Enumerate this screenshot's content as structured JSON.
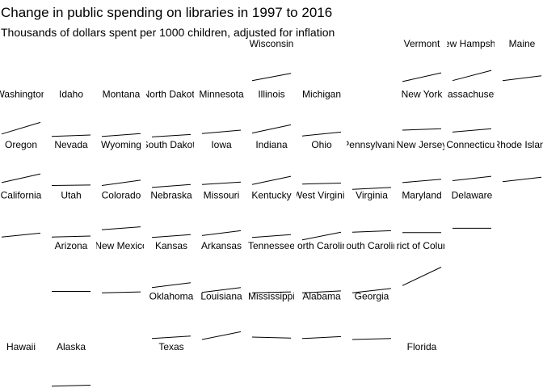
{
  "title": "Change in public spending on libraries in 1997 to 2016",
  "subtitle": "Thousands of dollars spent per 1000 children, adjusted for inflation",
  "chart_data": {
    "type": "line",
    "title": "Change in public spending on libraries in 1997 to 2016",
    "subtitle": "Thousands of dollars spent per 1000 children, adjusted for inflation",
    "x": [
      1997,
      2016
    ],
    "ylim": [
      0,
      12
    ],
    "states": [
      {
        "name": "Wisconsin",
        "row": 0,
        "col": 5,
        "values": [
          4.6,
          7.6
        ]
      },
      {
        "name": "Vermont",
        "row": 0,
        "col": 8,
        "values": [
          4.2,
          7.8
        ]
      },
      {
        "name": "New Hampshire",
        "row": 0,
        "col": 9,
        "values": [
          4.6,
          8.8
        ]
      },
      {
        "name": "Maine",
        "row": 0,
        "col": 10,
        "values": [
          4.6,
          6.6
        ]
      },
      {
        "name": "Washington",
        "row": 1,
        "col": 0,
        "values": [
          3.4,
          8.2
        ]
      },
      {
        "name": "Idaho",
        "row": 1,
        "col": 1,
        "values": [
          2.4,
          3.0
        ]
      },
      {
        "name": "Montana",
        "row": 1,
        "col": 2,
        "values": [
          2.4,
          3.6
        ]
      },
      {
        "name": "North Dakota",
        "row": 1,
        "col": 3,
        "values": [
          2.2,
          3.2
        ]
      },
      {
        "name": "Minnesota",
        "row": 1,
        "col": 4,
        "values": [
          3.6,
          5.0
        ]
      },
      {
        "name": "Illinois",
        "row": 1,
        "col": 5,
        "values": [
          3.8,
          7.2
        ]
      },
      {
        "name": "Michigan",
        "row": 1,
        "col": 6,
        "values": [
          2.6,
          4.2
        ]
      },
      {
        "name": "New York",
        "row": 1,
        "col": 8,
        "values": [
          5.0,
          5.6
        ]
      },
      {
        "name": "Massachusetts",
        "row": 1,
        "col": 9,
        "values": [
          4.2,
          5.6
        ]
      },
      {
        "name": "Oregon",
        "row": 2,
        "col": 0,
        "values": [
          4.2,
          7.8
        ]
      },
      {
        "name": "Nevada",
        "row": 2,
        "col": 1,
        "values": [
          3.0,
          3.2
        ]
      },
      {
        "name": "Wyoming",
        "row": 2,
        "col": 2,
        "values": [
          3.0,
          5.2
        ]
      },
      {
        "name": "South Dakota",
        "row": 2,
        "col": 3,
        "values": [
          2.2,
          3.4
        ]
      },
      {
        "name": "Iowa",
        "row": 2,
        "col": 4,
        "values": [
          3.4,
          4.4
        ]
      },
      {
        "name": "Indiana",
        "row": 2,
        "col": 5,
        "values": [
          3.4,
          6.8
        ]
      },
      {
        "name": "Ohio",
        "row": 2,
        "col": 6,
        "values": [
          3.6,
          4.0
        ]
      },
      {
        "name": "Pennsylvania",
        "row": 2,
        "col": 7,
        "values": [
          1.4,
          2.2
        ]
      },
      {
        "name": "New Jersey",
        "row": 2,
        "col": 8,
        "values": [
          4.2,
          5.6
        ]
      },
      {
        "name": "Connecticut",
        "row": 2,
        "col": 9,
        "values": [
          5.0,
          6.8
        ]
      },
      {
        "name": "Rhode Island",
        "row": 2,
        "col": 10,
        "values": [
          4.6,
          6.4
        ]
      },
      {
        "name": "California",
        "row": 3,
        "col": 0,
        "values": [
          2.6,
          4.2
        ]
      },
      {
        "name": "Utah",
        "row": 3,
        "col": 1,
        "values": [
          2.6,
          3.0
        ]
      },
      {
        "name": "Colorado",
        "row": 3,
        "col": 2,
        "values": [
          5.6,
          6.8
        ]
      },
      {
        "name": "Nebraska",
        "row": 3,
        "col": 3,
        "values": [
          2.4,
          3.6
        ]
      },
      {
        "name": "Missouri",
        "row": 3,
        "col": 4,
        "values": [
          3.2,
          5.2
        ]
      },
      {
        "name": "Kentucky",
        "row": 3,
        "col": 5,
        "values": [
          2.4,
          3.6
        ]
      },
      {
        "name": "West Virginia",
        "row": 3,
        "col": 6,
        "values": [
          1.4,
          4.6
        ]
      },
      {
        "name": "Virginia",
        "row": 3,
        "col": 7,
        "values": [
          4.6,
          5.2
        ]
      },
      {
        "name": "Maryland",
        "row": 3,
        "col": 8,
        "values": [
          4.4,
          4.4
        ]
      },
      {
        "name": "Delaware",
        "row": 3,
        "col": 9,
        "values": [
          6.2,
          6.2
        ]
      },
      {
        "name": "Arizona",
        "row": 4,
        "col": 1,
        "values": [
          1.0,
          1.0
        ]
      },
      {
        "name": "New Mexico",
        "row": 4,
        "col": 2,
        "values": [
          0.4,
          0.8
        ]
      },
      {
        "name": "Kansas",
        "row": 4,
        "col": 3,
        "values": [
          2.6,
          4.6
        ]
      },
      {
        "name": "Arkansas",
        "row": 4,
        "col": 4,
        "values": [
          0.6,
          2.6
        ]
      },
      {
        "name": "Tennessee",
        "row": 4,
        "col": 5,
        "values": [
          0.4,
          0.8
        ]
      },
      {
        "name": "North Carolina",
        "row": 4,
        "col": 6,
        "values": [
          0.4,
          1.2
        ]
      },
      {
        "name": "South Carolina",
        "row": 4,
        "col": 7,
        "values": [
          0.4,
          2.2
        ]
      },
      {
        "name": "District of Columbia",
        "row": 4,
        "col": 8,
        "values": [
          3.4,
          11.0
        ]
      },
      {
        "name": "Oklahoma",
        "row": 5,
        "col": 3,
        "values": [
          2.4,
          3.4
        ]
      },
      {
        "name": "Louisiana",
        "row": 5,
        "col": 4,
        "values": [
          2.0,
          5.2
        ]
      },
      {
        "name": "Mississippi",
        "row": 5,
        "col": 5,
        "values": [
          3.0,
          2.6
        ]
      },
      {
        "name": "Alabama",
        "row": 5,
        "col": 6,
        "values": [
          2.4,
          3.2
        ]
      },
      {
        "name": "Georgia",
        "row": 5,
        "col": 7,
        "values": [
          2.0,
          2.4
        ]
      },
      {
        "name": "Hawaii",
        "row": 6,
        "col": 0,
        "values": [
          0.4,
          0.8
        ]
      },
      {
        "name": "Alaska",
        "row": 6,
        "col": 1,
        "values": [
          3.6,
          4.0
        ]
      },
      {
        "name": "Texas",
        "row": 6,
        "col": 3,
        "values": [
          0.0,
          0.4
        ]
      },
      {
        "name": "Florida",
        "row": 6,
        "col": 8,
        "values": [
          1.0,
          1.4
        ]
      }
    ]
  }
}
